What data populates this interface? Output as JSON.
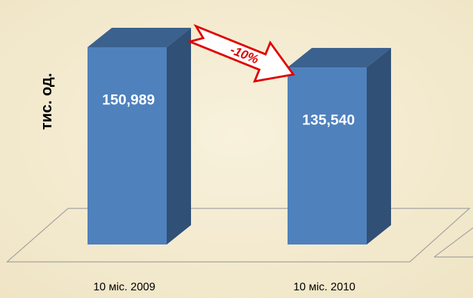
{
  "chart_data": {
    "type": "bar3d",
    "y_label": "тис. од.",
    "annotation": "-10%",
    "categories": [
      "10 міс. 2009",
      "10 міс. 2010"
    ],
    "values": [
      150.989,
      135.54
    ],
    "value_labels": [
      "150,989",
      "135,540"
    ],
    "color": "#4f81bd",
    "ylim": [
      0,
      160
    ]
  }
}
